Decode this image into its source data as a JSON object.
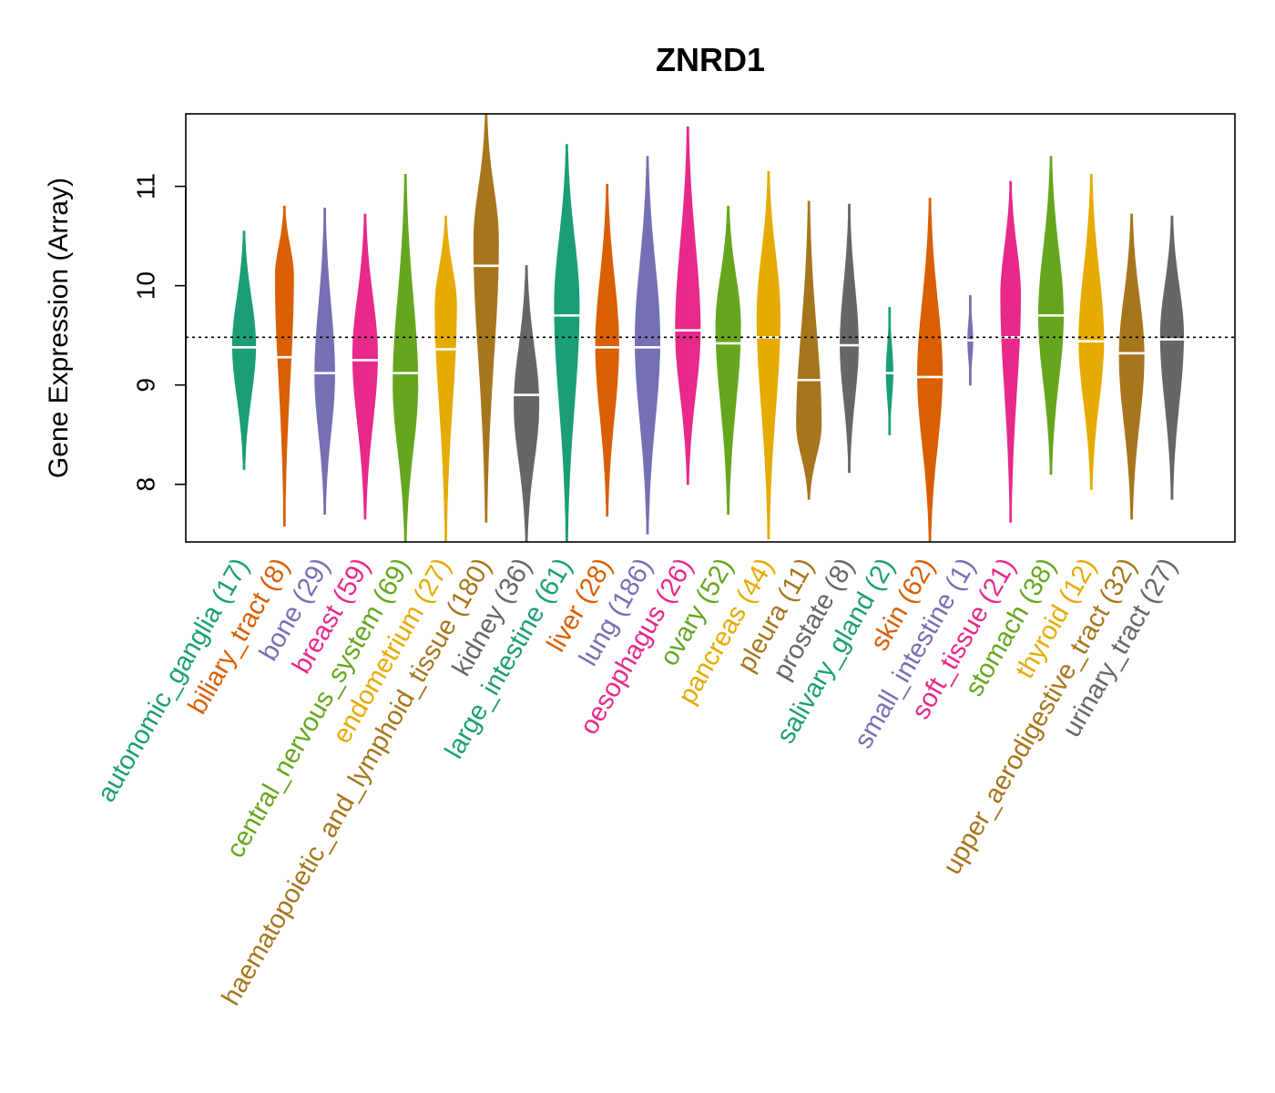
{
  "chart_data": {
    "type": "violin",
    "title": "ZNRD1",
    "xlabel": "",
    "ylabel": "Gene Expression (Array)",
    "ylim": [
      7.42,
      11.73
    ],
    "yticks": [
      8,
      9,
      10,
      11
    ],
    "reference_line": 9.48,
    "grid": false,
    "legend": "none",
    "categories": [
      {
        "label": "autonomic_ganglia (17)",
        "color": "#1B9E77",
        "min": 8.15,
        "max": 10.55,
        "median": 9.38,
        "mode": 9.4,
        "width": 0.7
      },
      {
        "label": "biliary_tract (8)",
        "color": "#D95F02",
        "min": 7.58,
        "max": 10.8,
        "median": 9.28,
        "mode": 10.1,
        "width": 0.55
      },
      {
        "label": "bone (29)",
        "color": "#7570B3",
        "min": 7.7,
        "max": 10.78,
        "median": 9.12,
        "mode": 9.1,
        "width": 0.6
      },
      {
        "label": "breast (59)",
        "color": "#E7298A",
        "min": 7.65,
        "max": 10.72,
        "median": 9.25,
        "mode": 9.3,
        "width": 0.75
      },
      {
        "label": "central_nervous_system (69)",
        "color": "#66A61E",
        "min": 7.42,
        "max": 11.12,
        "median": 9.12,
        "mode": 9.0,
        "width": 0.75
      },
      {
        "label": "endometrium (27)",
        "color": "#E6AB02",
        "min": 7.42,
        "max": 10.7,
        "median": 9.36,
        "mode": 9.8,
        "width": 0.65
      },
      {
        "label": "haematopoietic_and_lymphoid_tissue (180)",
        "color": "#A6761D",
        "min": 7.62,
        "max": 11.73,
        "median": 10.2,
        "mode": 10.45,
        "width": 0.75
      },
      {
        "label": "kidney (36)",
        "color": "#666666",
        "min": 7.42,
        "max": 10.2,
        "median": 8.9,
        "mode": 8.8,
        "width": 0.75
      },
      {
        "label": "large_intestine (61)",
        "color": "#1B9E77",
        "min": 7.42,
        "max": 11.42,
        "median": 9.7,
        "mode": 9.8,
        "width": 0.75
      },
      {
        "label": "liver (28)",
        "color": "#D95F02",
        "min": 7.68,
        "max": 11.02,
        "median": 9.38,
        "mode": 9.4,
        "width": 0.7
      },
      {
        "label": "lung (186)",
        "color": "#7570B3",
        "min": 7.5,
        "max": 11.3,
        "median": 9.38,
        "mode": 9.45,
        "width": 0.75
      },
      {
        "label": "oesophagus (26)",
        "color": "#E7298A",
        "min": 8.0,
        "max": 11.6,
        "median": 9.55,
        "mode": 9.55,
        "width": 0.75
      },
      {
        "label": "ovary (52)",
        "color": "#66A61E",
        "min": 7.7,
        "max": 10.8,
        "median": 9.42,
        "mode": 9.6,
        "width": 0.75
      },
      {
        "label": "pancreas (44)",
        "color": "#E6AB02",
        "min": 7.45,
        "max": 11.15,
        "median": 9.48,
        "mode": 9.7,
        "width": 0.7
      },
      {
        "label": "pleura (11)",
        "color": "#A6761D",
        "min": 7.85,
        "max": 10.85,
        "median": 9.05,
        "mode": 8.6,
        "width": 0.75
      },
      {
        "label": "prostate (8)",
        "color": "#666666",
        "min": 8.12,
        "max": 10.82,
        "median": 9.4,
        "mode": 9.4,
        "width": 0.55
      },
      {
        "label": "salivary_gland (2)",
        "color": "#1B9E77",
        "min": 8.5,
        "max": 9.78,
        "median": 9.12,
        "mode": 9.12,
        "width": 0.2
      },
      {
        "label": "skin (62)",
        "color": "#D95F02",
        "min": 7.42,
        "max": 10.88,
        "median": 9.08,
        "mode": 9.1,
        "width": 0.75
      },
      {
        "label": "small_intestine (1)",
        "color": "#7570B3",
        "min": 9.0,
        "max": 9.9,
        "median": 9.45,
        "mode": 9.45,
        "width": 0.15
      },
      {
        "label": "soft_tissue (21)",
        "color": "#E7298A",
        "min": 7.62,
        "max": 11.05,
        "median": 9.48,
        "mode": 9.9,
        "width": 0.6
      },
      {
        "label": "stomach (38)",
        "color": "#66A61E",
        "min": 8.1,
        "max": 11.3,
        "median": 9.7,
        "mode": 9.7,
        "width": 0.75
      },
      {
        "label": "thyroid (12)",
        "color": "#E6AB02",
        "min": 7.95,
        "max": 11.12,
        "median": 9.44,
        "mode": 9.45,
        "width": 0.75
      },
      {
        "label": "upper_aerodigestive_tract (32)",
        "color": "#A6761D",
        "min": 7.65,
        "max": 10.72,
        "median": 9.32,
        "mode": 9.3,
        "width": 0.75
      },
      {
        "label": "urinary_tract (27)",
        "color": "#666666",
        "min": 7.85,
        "max": 10.7,
        "median": 9.46,
        "mode": 9.5,
        "width": 0.7
      }
    ]
  }
}
